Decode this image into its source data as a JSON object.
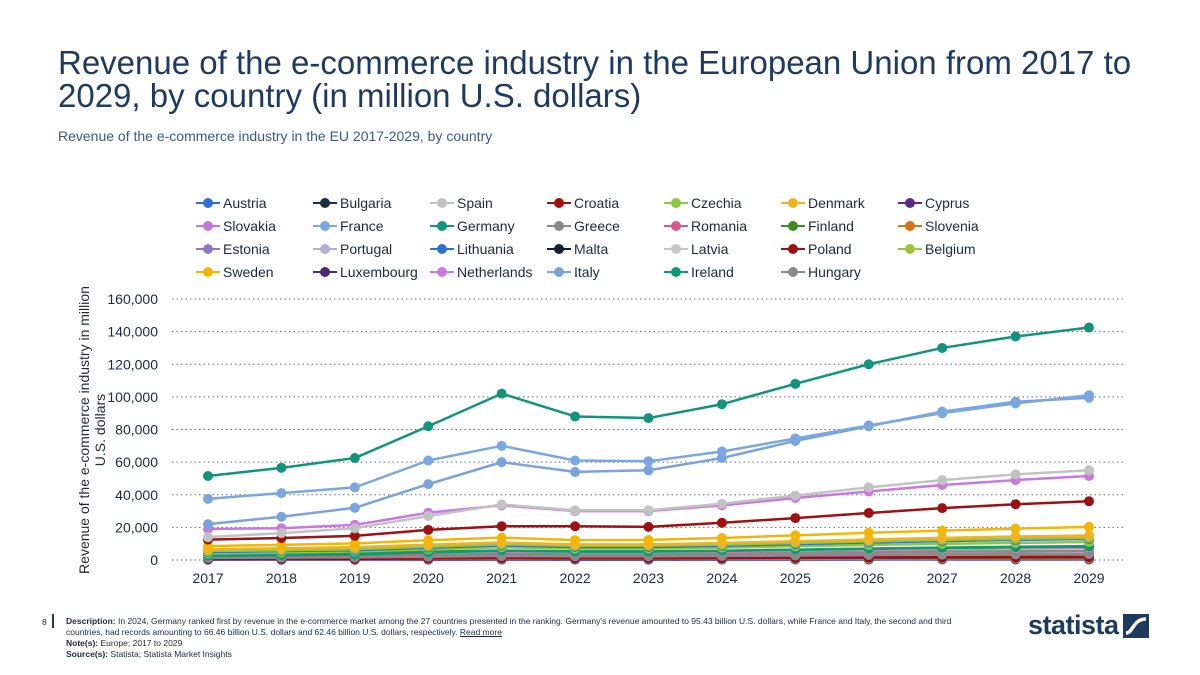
{
  "title": "Revenue of the e-commerce industry in the European Union from 2017 to 2029, by country (in million U.S. dollars)",
  "subtitle": "Revenue of the e-commerce industry in the EU 2017-2029, by country",
  "footer": {
    "page_number": "8",
    "description_label": "Description:",
    "description": "In 2024, Germany ranked first by revenue in the e-commerce market among the 27 countries presented in the ranking. Germany's revenue amounted to 95.43 billion U.S. dollars, while France and Italy, the second and third countries, had records amounting to 66.46 billion U.S. dollars and 62.46 billion U.S. dollars, respectively.",
    "read_more": "Read more",
    "note_label": "Note(s):",
    "note": "Europe; 2017 to 2029",
    "source_label": "Source(s):",
    "source": "Statista; Statista Market Insights"
  },
  "logo_text": "statista",
  "chart_data": {
    "type": "line",
    "title": "",
    "xlabel": "",
    "ylabel": "Revenue of the e-commerce industry in million U.S. dollars",
    "x": [
      "2017",
      "2018",
      "2019",
      "2020",
      "2021",
      "2022",
      "2023",
      "2024",
      "2025",
      "2026",
      "2027",
      "2028",
      "2029"
    ],
    "ylim": [
      0,
      160000
    ],
    "yticks": [
      0,
      20000,
      40000,
      60000,
      80000,
      100000,
      120000,
      140000,
      160000
    ],
    "ytick_labels": [
      "0",
      "20,000",
      "40,000",
      "60,000",
      "80,000",
      "100,000",
      "120,000",
      "140,000",
      "160,000"
    ],
    "grid": "horizontal dotted",
    "legend": "top",
    "series": [
      {
        "name": "Austria",
        "color": "#2e6fd1",
        "values": [
          5000,
          5500,
          6000,
          7500,
          9000,
          8000,
          8000,
          8700,
          9700,
          10700,
          11600,
          12300,
          12900
        ]
      },
      {
        "name": "Bulgaria",
        "color": "#1d2b45",
        "values": [
          600,
          700,
          800,
          1000,
          1200,
          1100,
          1100,
          1200,
          1350,
          1500,
          1600,
          1700,
          1800
        ]
      },
      {
        "name": "Spain",
        "color": "#c2c2c2",
        "values": [
          14000,
          16500,
          19500,
          27000,
          34000,
          30500,
          30500,
          34500,
          39500,
          44500,
          49000,
          52500,
          55000
        ]
      },
      {
        "name": "Croatia",
        "color": "#a30d0d",
        "values": [
          700,
          800,
          900,
          1100,
          1400,
          1300,
          1300,
          1400,
          1550,
          1700,
          1850,
          1950,
          2050
        ]
      },
      {
        "name": "Czechia",
        "color": "#8ec63f",
        "values": [
          4000,
          4600,
          5200,
          6500,
          7800,
          7000,
          7000,
          7600,
          8400,
          9200,
          9900,
          10500,
          11000
        ]
      },
      {
        "name": "Denmark",
        "color": "#f0b323",
        "values": [
          6500,
          7200,
          7900,
          9400,
          10700,
          9600,
          9600,
          10400,
          11500,
          12600,
          13600,
          14400,
          15000
        ]
      },
      {
        "name": "Cyprus",
        "color": "#5b2d82",
        "values": [
          200,
          230,
          260,
          320,
          380,
          350,
          350,
          380,
          420,
          460,
          500,
          530,
          560
        ]
      },
      {
        "name": "Slovakia",
        "color": "#c277db",
        "values": [
          1300,
          1500,
          1700,
          2100,
          2500,
          2300,
          2300,
          2500,
          2800,
          3100,
          3300,
          3500,
          3700
        ]
      },
      {
        "name": "France",
        "color": "#7ba7e0",
        "values": [
          37500,
          41000,
          44500,
          61000,
          70000,
          61000,
          60500,
          66500,
          74500,
          82500,
          90000,
          96000,
          101000
        ]
      },
      {
        "name": "Germany",
        "color": "#12947a",
        "values": [
          51500,
          56500,
          62500,
          82000,
          102000,
          88000,
          87000,
          95500,
          108000,
          120000,
          130000,
          137000,
          142500
        ]
      },
      {
        "name": "Greece",
        "color": "#8a8a8a",
        "values": [
          1800,
          2100,
          2400,
          3300,
          4000,
          3600,
          3600,
          3900,
          4300,
          4700,
          5100,
          5400,
          5700
        ]
      },
      {
        "name": "Romania",
        "color": "#d45a8a",
        "values": [
          2500,
          2900,
          3300,
          4200,
          5000,
          4600,
          4600,
          5000,
          5600,
          6200,
          6700,
          7100,
          7500
        ]
      },
      {
        "name": "Finland",
        "color": "#3d8c1f",
        "values": [
          3500,
          3900,
          4300,
          5100,
          5800,
          5300,
          5300,
          5700,
          6300,
          6900,
          7400,
          7800,
          8200
        ]
      },
      {
        "name": "Slovenia",
        "color": "#d9731a",
        "values": [
          500,
          560,
          620,
          760,
          900,
          830,
          830,
          900,
          1000,
          1100,
          1180,
          1250,
          1310
        ]
      },
      {
        "name": "Estonia",
        "color": "#8e7cc3",
        "values": [
          350,
          400,
          450,
          560,
          660,
          610,
          610,
          660,
          730,
          800,
          860,
          910,
          960
        ]
      },
      {
        "name": "Portugal",
        "color": "#b4aed6",
        "values": [
          2800,
          3200,
          3600,
          4500,
          5400,
          4900,
          4900,
          5300,
          5900,
          6500,
          7000,
          7400,
          7800
        ]
      },
      {
        "name": "Lithuania",
        "color": "#2a73d4",
        "values": [
          600,
          700,
          800,
          1000,
          1200,
          1100,
          1100,
          1200,
          1330,
          1460,
          1580,
          1680,
          1770
        ]
      },
      {
        "name": "Malta",
        "color": "#0f2235",
        "values": [
          150,
          170,
          190,
          240,
          280,
          260,
          260,
          280,
          310,
          340,
          370,
          390,
          410
        ]
      },
      {
        "name": "Latvia",
        "color": "#c7c7c7",
        "values": [
          300,
          340,
          380,
          470,
          560,
          520,
          520,
          560,
          620,
          680,
          730,
          770,
          810
        ]
      },
      {
        "name": "Poland",
        "color": "#9c1212",
        "values": [
          12500,
          13500,
          14800,
          18500,
          20700,
          20700,
          20300,
          22800,
          25700,
          28800,
          31800,
          34200,
          36000
        ]
      },
      {
        "name": "Belgium",
        "color": "#9bc53d",
        "values": [
          5500,
          6000,
          6600,
          8200,
          9600,
          8700,
          8700,
          9400,
          10400,
          11400,
          12300,
          13000,
          13600
        ]
      },
      {
        "name": "Sweden",
        "color": "#f2b705",
        "values": [
          8500,
          9300,
          10200,
          12100,
          13700,
          12200,
          12300,
          13500,
          15100,
          16700,
          18000,
          19200,
          20300
        ]
      },
      {
        "name": "Luxembourg",
        "color": "#4b2873",
        "values": [
          300,
          340,
          380,
          470,
          560,
          520,
          520,
          560,
          620,
          680,
          730,
          770,
          810
        ]
      },
      {
        "name": "Netherlands",
        "color": "#c978e0",
        "values": [
          19000,
          19500,
          21500,
          29000,
          33500,
          30000,
          30000,
          33500,
          38000,
          42000,
          46000,
          49000,
          51500
        ]
      },
      {
        "name": "Italy",
        "color": "#7aa3de",
        "values": [
          22000,
          26500,
          32000,
          46500,
          60000,
          54000,
          55000,
          62500,
          73000,
          82000,
          91000,
          97000,
          99500
        ]
      },
      {
        "name": "Ireland",
        "color": "#0e9a77",
        "values": [
          2600,
          3000,
          3400,
          4600,
          5700,
          5100,
          5100,
          5600,
          6300,
          7000,
          7600,
          8100,
          8500
        ]
      },
      {
        "name": "Hungary",
        "color": "#8a8a8a",
        "values": [
          1400,
          1600,
          1800,
          2300,
          2800,
          2500,
          2500,
          2700,
          3000,
          3300,
          3600,
          3800,
          4000
        ]
      }
    ]
  }
}
